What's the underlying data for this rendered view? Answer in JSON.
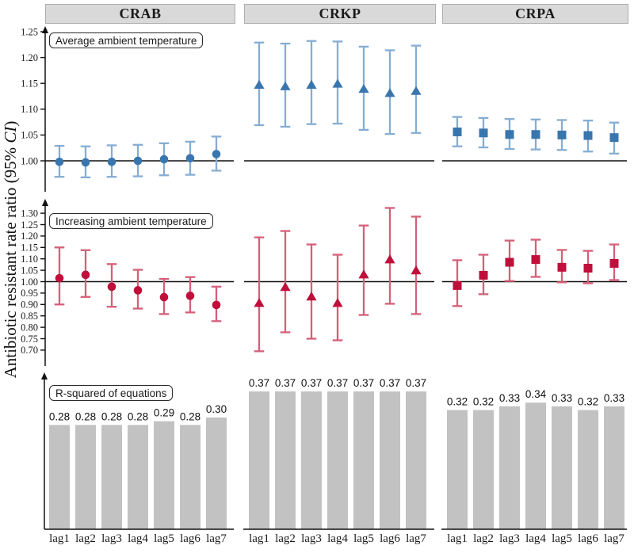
{
  "figure": {
    "columns": [
      "CRAB",
      "CRKP",
      "CRPA"
    ],
    "ylabel": "Antibiotic resistant rate ratio (95% CI)",
    "ylabel_prefix": "Antibiotic resistant rate ratio (95% ",
    "ylabel_italic": "CI",
    "ylabel_suffix": ")"
  },
  "colors": {
    "blue_marker": "#3a76ae",
    "blue_errorbar": "#86add2",
    "red_marker": "#bf0f3a",
    "red_errorbar": "#d65f79",
    "bar_fill": "#c2c2c2",
    "axis": "#111111",
    "header_bg": "#d9d9d9"
  },
  "chart_data": [
    {
      "type": "errorbar",
      "title": "Average ambient temperature",
      "categories": [
        "lag1",
        "lag2",
        "lag3",
        "lag4",
        "lag5",
        "lag6",
        "lag7"
      ],
      "ref_line": 1.0,
      "ylim": [
        0.955,
        1.27
      ],
      "yticks": [
        "1.00",
        "1.05",
        "1.10",
        "1.15",
        "1.20",
        "1.25"
      ],
      "legend_position": "none",
      "grid": false,
      "series": [
        {
          "name": "CRAB",
          "marker": "circle",
          "marker_color": "#3a76ae",
          "errorbar_color": "#86add2",
          "est": [
            0.998,
            0.997,
            0.998,
            1.0,
            1.003,
            1.005,
            1.013
          ],
          "lo": [
            0.969,
            0.968,
            0.969,
            0.97,
            0.972,
            0.973,
            0.981
          ],
          "hi": [
            1.029,
            1.028,
            1.03,
            1.031,
            1.034,
            1.037,
            1.047
          ]
        },
        {
          "name": "CRKP",
          "marker": "triangle",
          "marker_color": "#3a76ae",
          "errorbar_color": "#86add2",
          "est": [
            1.147,
            1.144,
            1.147,
            1.149,
            1.139,
            1.131,
            1.135
          ],
          "lo": [
            1.069,
            1.066,
            1.071,
            1.072,
            1.06,
            1.052,
            1.054
          ],
          "hi": [
            1.229,
            1.227,
            1.232,
            1.231,
            1.221,
            1.214,
            1.223
          ]
        },
        {
          "name": "CRPA",
          "marker": "square",
          "marker_color": "#3a76ae",
          "errorbar_color": "#86add2",
          "est": [
            1.056,
            1.054,
            1.051,
            1.051,
            1.05,
            1.049,
            1.045
          ],
          "lo": [
            1.028,
            1.026,
            1.023,
            1.022,
            1.021,
            1.018,
            1.014
          ],
          "hi": [
            1.085,
            1.083,
            1.081,
            1.08,
            1.079,
            1.078,
            1.074
          ]
        }
      ]
    },
    {
      "type": "errorbar",
      "title": "Increasing ambient temperature",
      "categories": [
        "lag1",
        "lag2",
        "lag3",
        "lag4",
        "lag5",
        "lag6",
        "lag7"
      ],
      "ref_line": 1.0,
      "ylim": [
        0.67,
        1.34
      ],
      "yticks": [
        "0.70",
        "0.75",
        "0.80",
        "0.85",
        "0.90",
        "0.95",
        "1.00",
        "1.05",
        "1.10",
        "1.15",
        "1.20",
        "1.25",
        "1.30"
      ],
      "legend_position": "none",
      "grid": false,
      "series": [
        {
          "name": "CRAB",
          "marker": "circle",
          "marker_color": "#bf0f3a",
          "errorbar_color": "#d65f79",
          "est": [
            1.015,
            1.03,
            0.978,
            0.962,
            0.932,
            0.938,
            0.898
          ],
          "lo": [
            0.9,
            0.933,
            0.89,
            0.882,
            0.858,
            0.865,
            0.827
          ],
          "hi": [
            1.15,
            1.138,
            1.077,
            1.052,
            1.012,
            1.02,
            0.978
          ]
        },
        {
          "name": "CRKP",
          "marker": "triangle",
          "marker_color": "#bf0f3a",
          "errorbar_color": "#d65f79",
          "est": [
            0.906,
            0.976,
            0.934,
            0.906,
            1.031,
            1.097,
            1.049
          ],
          "lo": [
            0.695,
            0.778,
            0.75,
            0.743,
            0.854,
            0.903,
            0.858
          ],
          "hi": [
            1.194,
            1.222,
            1.163,
            1.118,
            1.246,
            1.323,
            1.285
          ]
        },
        {
          "name": "CRPA",
          "marker": "square",
          "marker_color": "#bf0f3a",
          "errorbar_color": "#d65f79",
          "est": [
            0.983,
            1.028,
            1.085,
            1.097,
            1.063,
            1.059,
            1.08
          ],
          "lo": [
            0.893,
            0.945,
            1.003,
            1.021,
            0.997,
            0.993,
            1.007
          ],
          "hi": [
            1.094,
            1.118,
            1.18,
            1.184,
            1.139,
            1.135,
            1.163
          ]
        }
      ]
    },
    {
      "type": "bar",
      "title": "R-squared of equations",
      "categories": [
        "lag1",
        "lag2",
        "lag3",
        "lag4",
        "lag5",
        "lag6",
        "lag7"
      ],
      "ylim": [
        0,
        0.42
      ],
      "bar_fill": "#c2c2c2",
      "value_labels": true,
      "legend_position": "none",
      "grid": false,
      "series": [
        {
          "name": "CRAB",
          "values": [
            0.28,
            0.28,
            0.28,
            0.28,
            0.29,
            0.28,
            0.3
          ]
        },
        {
          "name": "CRKP",
          "values": [
            0.37,
            0.37,
            0.37,
            0.37,
            0.37,
            0.37,
            0.37
          ]
        },
        {
          "name": "CRPA",
          "values": [
            0.32,
            0.32,
            0.33,
            0.34,
            0.33,
            0.32,
            0.33
          ]
        }
      ]
    }
  ]
}
